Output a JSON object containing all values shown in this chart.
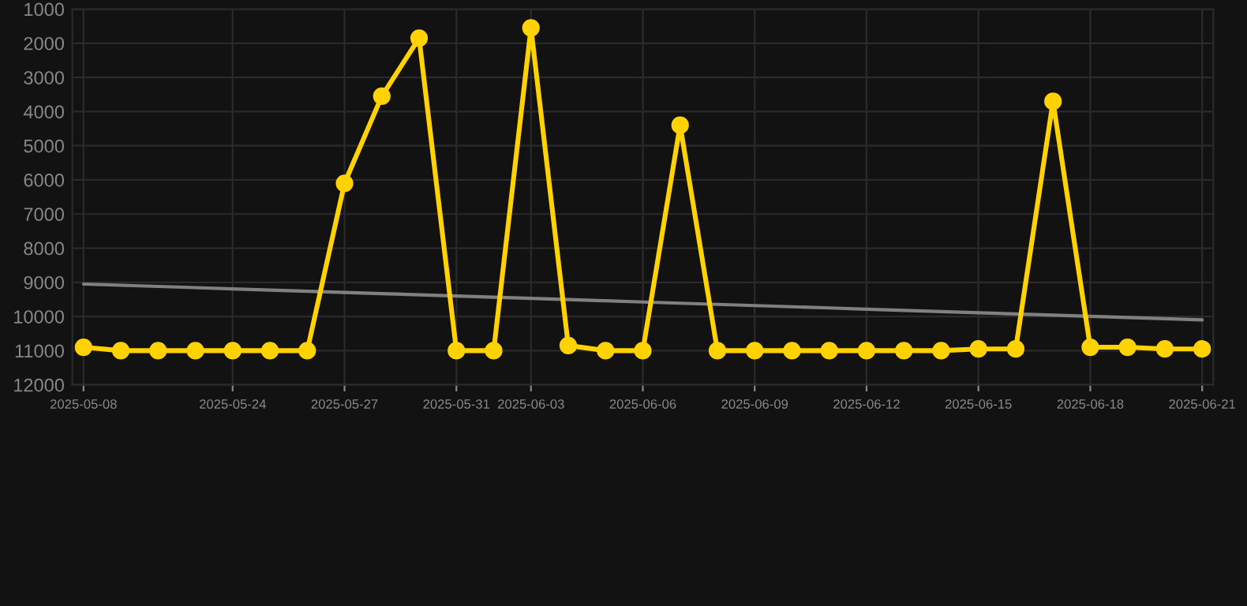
{
  "chart_data": {
    "type": "line",
    "categories": [
      "2025-05-08",
      null,
      null,
      null,
      "2025-05-24",
      null,
      null,
      "2025-05-27",
      null,
      null,
      "2025-05-31",
      null,
      "2025-06-03",
      null,
      null,
      "2025-06-06",
      null,
      null,
      "2025-06-09",
      null,
      null,
      "2025-06-12",
      null,
      null,
      "2025-06-15",
      null,
      null,
      "2025-06-18",
      null,
      null,
      "2025-06-21"
    ],
    "series": [
      {
        "color": "#ffd200",
        "marker": "circle",
        "values": [
          10900,
          11000,
          11000,
          11000,
          11000,
          11000,
          11000,
          6100,
          3550,
          1850,
          11000,
          11000,
          1550,
          10850,
          11000,
          11000,
          4400,
          11000,
          11000,
          11000,
          11000,
          11000,
          11000,
          11000,
          10950,
          10950,
          3700,
          10900,
          10900,
          10950,
          10950
        ]
      },
      {
        "color": "#808080",
        "marker": "none",
        "values": [
          9050,
          9085,
          9120,
          9155,
          9190,
          9225,
          9260,
          9295,
          9330,
          9365,
          9400,
          9435,
          9470,
          9505,
          9540,
          9575,
          9610,
          9645,
          9680,
          9715,
          9750,
          9785,
          9820,
          9855,
          9890,
          9925,
          9960,
          9995,
          10030,
          10065,
          10100
        ]
      }
    ],
    "ylim": [
      12000,
      1000
    ],
    "yticks": [
      1000,
      2000,
      3000,
      4000,
      5000,
      6000,
      7000,
      8000,
      9000,
      10000,
      11000,
      12000
    ],
    "grid": true
  }
}
